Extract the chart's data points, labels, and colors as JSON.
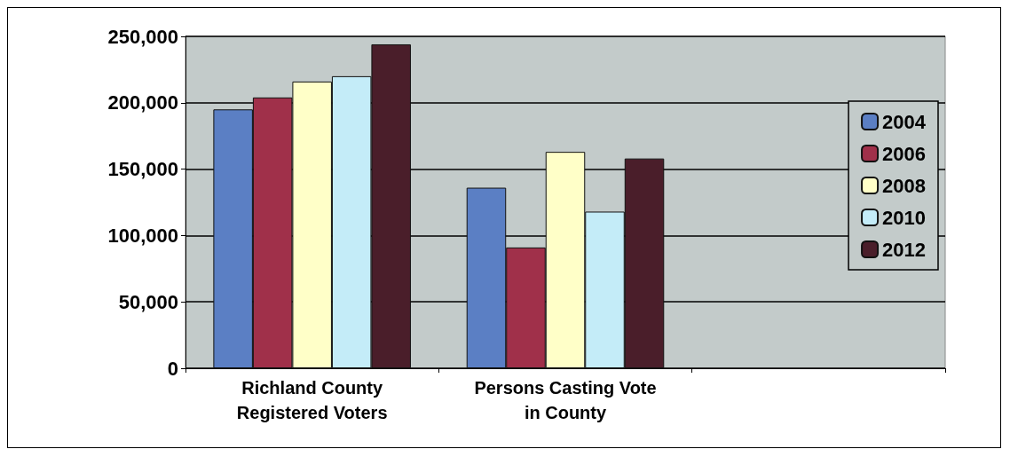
{
  "chart_data": {
    "type": "bar",
    "categories": [
      "Richland County\nRegistered Voters",
      "Persons Casting Vote\nin County",
      null
    ],
    "series": [
      {
        "name": "2004",
        "color": "#5b7fc4",
        "values": [
          195000,
          136000,
          null
        ]
      },
      {
        "name": "2006",
        "color": "#a0304a",
        "values": [
          204000,
          91000,
          null
        ]
      },
      {
        "name": "2008",
        "color": "#ffffc8",
        "values": [
          216000,
          163000,
          null
        ]
      },
      {
        "name": "2010",
        "color": "#c4ecf8",
        "values": [
          220000,
          118000,
          null
        ]
      },
      {
        "name": "2012",
        "color": "#4a1e2a",
        "values": [
          244000,
          158000,
          null
        ]
      }
    ],
    "ylim": [
      0,
      250000
    ],
    "yticks": [
      {
        "value": 0,
        "label": "0"
      },
      {
        "value": 50000,
        "label": "50,000"
      },
      {
        "value": 100000,
        "label": "100,000"
      },
      {
        "value": 150000,
        "label": "150,000"
      },
      {
        "value": 200000,
        "label": "200,000"
      },
      {
        "value": 250000,
        "label": "250,000"
      }
    ],
    "grid": "y",
    "legend": "right"
  }
}
